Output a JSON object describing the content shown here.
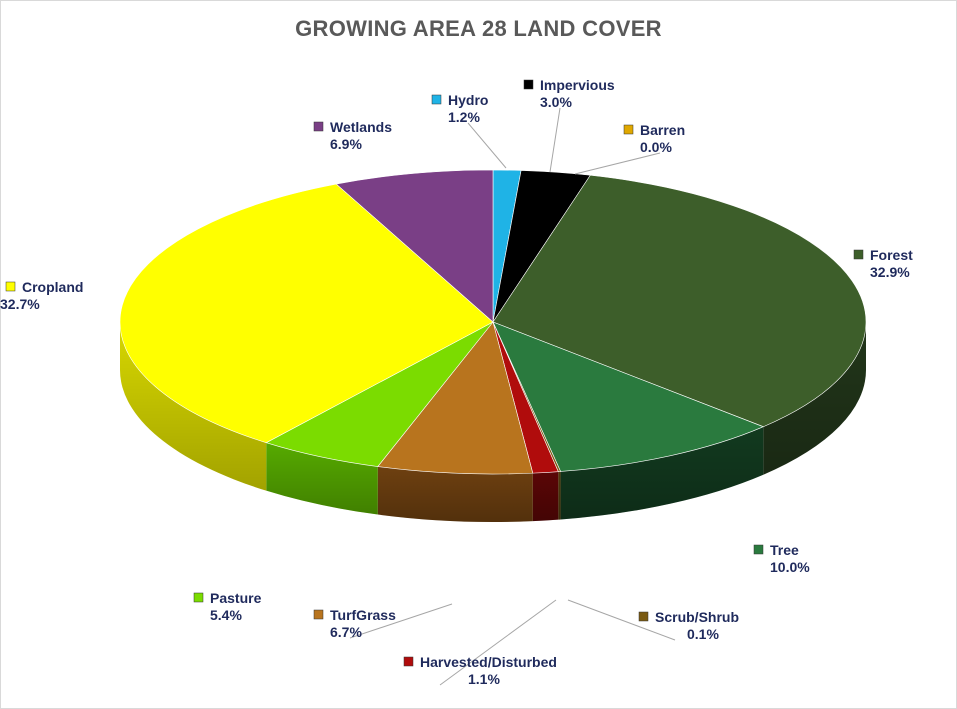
{
  "chart_data": {
    "type": "pie",
    "title": "GROWING AREA 28 LAND COVER",
    "legend": "labels-with-leaders",
    "slices": [
      {
        "name": "Hydro",
        "value": 1.2,
        "label": "1.2%",
        "color": "#1fb3e6",
        "side": "#1488b0"
      },
      {
        "name": "Impervious",
        "value": 3.0,
        "label": "3.0%",
        "color": "#000000",
        "side": "#000000"
      },
      {
        "name": "Barren",
        "value": 0.0,
        "label": "0.0%",
        "color": "#e0a800",
        "side": "#a87e00"
      },
      {
        "name": "Forest",
        "value": 32.9,
        "label": "32.9%",
        "color": "#3d5e2a",
        "side": "#22361a"
      },
      {
        "name": "Tree",
        "value": 10.0,
        "label": "10.0%",
        "color": "#2a7a3e",
        "side": "#123a1f"
      },
      {
        "name": "Scrub/Shrub",
        "value": 0.1,
        "label": "0.1%",
        "color": "#7a5a12",
        "side": "#4e3a0c"
      },
      {
        "name": "Harvested/Disturbed",
        "value": 1.1,
        "label": "1.1%",
        "color": "#b00c0c",
        "side": "#5a0606"
      },
      {
        "name": "TurfGrass",
        "value": 6.7,
        "label": "6.7%",
        "color": "#b8741e",
        "side": "#6e4010"
      },
      {
        "name": "Pasture",
        "value": 5.4,
        "label": "5.4%",
        "color": "#7bdc00",
        "side": "#56aa00"
      },
      {
        "name": "Cropland",
        "value": 32.7,
        "label": "32.7%",
        "color": "#ffff00",
        "side": "#d8d800"
      },
      {
        "name": "Wetlands",
        "value": 6.9,
        "label": "6.9%",
        "color": "#7a3f86",
        "side": "#53295c"
      }
    ]
  }
}
